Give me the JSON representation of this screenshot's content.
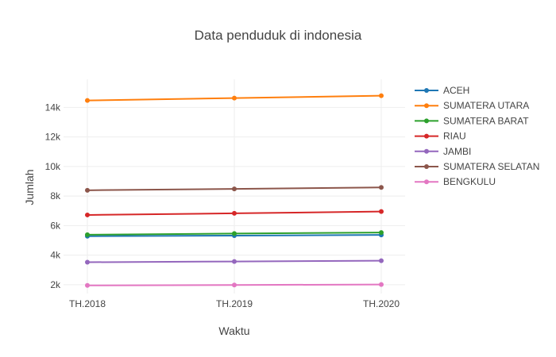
{
  "chart_data": {
    "type": "line",
    "title": "Data penduduk di indonesia",
    "xlabel": "Waktu",
    "ylabel": "Jumlah",
    "categories": [
      "TH.2018",
      "TH.2019",
      "TH.2020"
    ],
    "ylim": [
      1400,
      15900
    ],
    "yticks": [
      2000,
      4000,
      6000,
      8000,
      10000,
      12000,
      14000
    ],
    "ytick_labels": [
      "2k",
      "4k",
      "6k",
      "8k",
      "10k",
      "12k",
      "14k"
    ],
    "grid": true,
    "legend_position": "right",
    "series": [
      {
        "name": "ACEH",
        "color": "#1f77b4",
        "values": [
          5280,
          5320,
          5370
        ]
      },
      {
        "name": "SUMATERA UTARA",
        "color": "#ff7f0e",
        "values": [
          14470,
          14630,
          14790
        ]
      },
      {
        "name": "SUMATERA BARAT",
        "color": "#2ca02c",
        "values": [
          5380,
          5460,
          5530
        ]
      },
      {
        "name": "RIAU",
        "color": "#d62728",
        "values": [
          6720,
          6830,
          6950
        ]
      },
      {
        "name": "JAMBI",
        "color": "#9467bd",
        "values": [
          3520,
          3570,
          3620
        ]
      },
      {
        "name": "SUMATERA SELATAN",
        "color": "#8c564b",
        "values": [
          8390,
          8480,
          8580
        ]
      },
      {
        "name": "BENGKULU",
        "color": "#e377c2",
        "values": [
          1950,
          1980,
          2010
        ]
      }
    ]
  }
}
